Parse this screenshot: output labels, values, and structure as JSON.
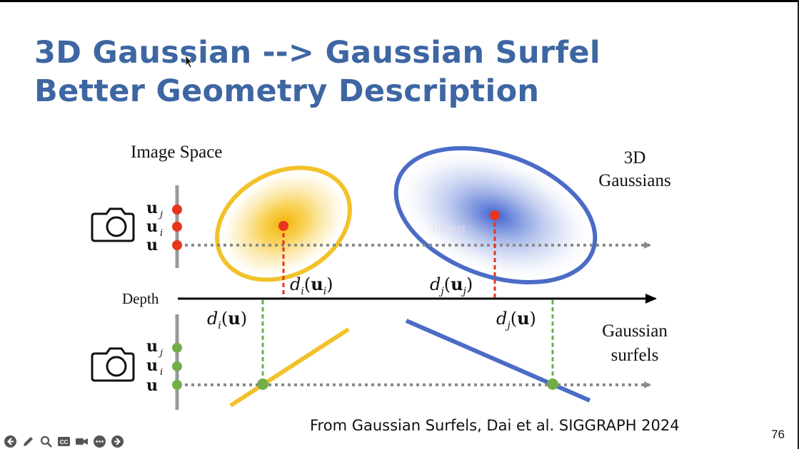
{
  "slide": {
    "title_line1": "3D Gaussian --> Gaussian Surfel",
    "title_line2": "Better Geometry Description",
    "caption": "From Gaussian Surfels, Dai et al. SIGGRAPH 2024",
    "page_number": "76"
  },
  "diagram": {
    "image_space_label": "Image Space",
    "gaussians_label_line1": "3D",
    "gaussians_label_line2": "Gaussians",
    "surfels_label_line1": "Gaussian",
    "surfels_label_line2": "surfels",
    "depth_label": "Depth",
    "pixel_labels": [
      "u",
      "u",
      "u"
    ],
    "pixel_subscripts": [
      "j",
      "i",
      ""
    ],
    "depth_labels": {
      "di_ui": {
        "d": "d",
        "sub": "i",
        "open": "(",
        "u": "u",
        "usub": "i",
        "close": ")"
      },
      "dj_uj": {
        "d": "d",
        "sub": "j",
        "open": "(",
        "u": "u",
        "usub": "j",
        "close": ")"
      },
      "di_u": {
        "d": "d",
        "sub": "i",
        "open": "(",
        "u": "u",
        "close": ")"
      },
      "dj_u": {
        "d": "d",
        "sub": "j",
        "open": "(",
        "u": "u",
        "close": ")"
      }
    },
    "watermark": "Tipriest",
    "colors": {
      "title": "#3d66a2",
      "yellow_gaussian": "#f2c22a",
      "blue_gaussian": "#4a6cc6",
      "red_point": "#e8351e",
      "green_point": "#72ae48",
      "dashed_gray": "#8a8a8a",
      "camera_line": "#9a9a9a"
    }
  },
  "toolbar": {
    "icons": [
      "back-icon",
      "pen-icon",
      "zoom-icon",
      "captions-icon",
      "camera-icon",
      "more-icon",
      "forward-icon"
    ]
  }
}
